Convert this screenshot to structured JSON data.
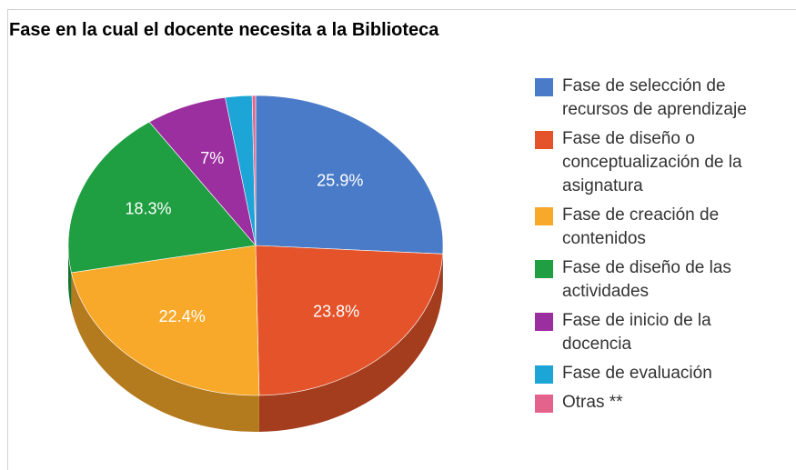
{
  "chart_data": {
    "type": "pie",
    "title": "Fase en la cual el docente necesita a la Biblioteca",
    "categories": [
      "Fase de selección de recursos de aprendizaje",
      "Fase de diseño o conceptualización de la asignatura",
      "Fase de creación de contenidos",
      "Fase de diseño de las actividades",
      "Fase de inicio de la docencia",
      "Fase de evaluación",
      "Otras **"
    ],
    "values": [
      25.9,
      23.8,
      22.4,
      18.3,
      7,
      2.3,
      0.3
    ],
    "value_labels": [
      "25.9%",
      "23.8%",
      "22.4%",
      "18.3%",
      "7%",
      null,
      null
    ],
    "colors": [
      "#4a7bc8",
      "#e4532a",
      "#f9a92a",
      "#1f9e42",
      "#9c2fa0",
      "#1ca5d6",
      "#e4638c"
    ],
    "legend": "right"
  }
}
